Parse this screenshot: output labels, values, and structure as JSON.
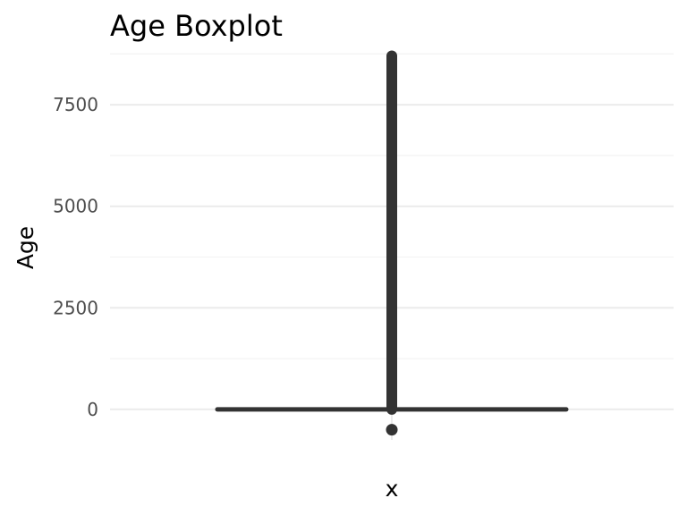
{
  "chart_data": {
    "type": "boxplot",
    "title": "Age Boxplot",
    "xlabel": "x",
    "ylabel": "Age",
    "ylim": [
      -750,
      8800
    ],
    "y_ticks": [
      0,
      2500,
      5000,
      7500
    ],
    "y_tick_labels": [
      "0",
      "2500",
      "5000",
      "7500"
    ],
    "grid": true,
    "box": {
      "min": 0,
      "q1": 0,
      "median": 0,
      "q3": 0,
      "max": 0
    },
    "outliers_range": [
      0,
      8700
    ],
    "outlier_points": [
      -500
    ],
    "colors": {
      "marks": "#333333",
      "grid_major": "#ebebeb",
      "grid_minor": "#f3f3f3"
    }
  }
}
